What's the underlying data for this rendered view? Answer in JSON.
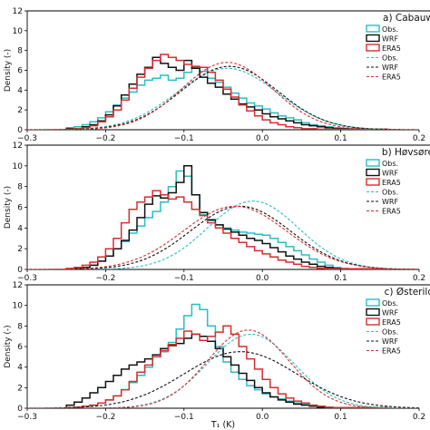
{
  "chart_data": {
    "type": "line",
    "figure": {
      "xlabel": "T₁ (K)",
      "ylabel": "Density (-)"
    },
    "colors": {
      "Obs.": "#2bbdc5",
      "WRF": "#111111",
      "ERA5": "#d62f2f"
    },
    "xlim": [
      -0.3,
      0.2
    ],
    "x_ticks": [
      "-0.3",
      "-0.2",
      "-0.1",
      "0.0",
      "0.1",
      "0.2"
    ],
    "ylim": [
      0,
      12
    ],
    "y_ticks": [
      "0",
      "2",
      "4",
      "6",
      "8",
      "10",
      "12"
    ],
    "bin_width": 0.01,
    "panels": [
      {
        "title": "a) Cabauw",
        "legend": [
          "Obs.",
          "WRF",
          "ERA5",
          "Obs.",
          "WRF",
          "ERA5"
        ],
        "hist_start": -0.25,
        "hist": [
          {
            "name": "Obs.",
            "values": [
              0.2,
              0.3,
              0.5,
              0.8,
              1.2,
              1.8,
              2.5,
              3.2,
              3.8,
              4.5,
              5.0,
              5.2,
              5.5,
              5.0,
              5.2,
              5.8,
              6.3,
              5.9,
              5.2,
              4.8,
              4.3,
              3.7,
              3.2,
              2.7,
              2.4,
              2.1,
              1.7,
              1.4,
              1.2,
              1.0,
              0.7,
              0.5,
              0.4,
              0.3,
              0.2,
              0.1,
              0.1,
              0.1,
              0.05,
              0.05,
              0.05
            ]
          },
          {
            "name": "WRF",
            "values": [
              0.1,
              0.1,
              0.3,
              0.5,
              0.9,
              1.5,
              2.4,
              3.5,
              4.6,
              5.6,
              6.3,
              7.3,
              6.7,
              6.3,
              6.0,
              7.0,
              6.2,
              5.3,
              4.7,
              4.3,
              3.6,
              3.1,
              2.6,
              2.3,
              2.0,
              1.6,
              1.3,
              1.1,
              0.9,
              0.7,
              0.5,
              0.4,
              0.3,
              0.2,
              0.1,
              0.1,
              0.05,
              0.05,
              0.05,
              0.05,
              0.05
            ]
          },
          {
            "name": "ERA5",
            "values": [
              0.05,
              0.1,
              0.2,
              0.4,
              0.8,
              1.3,
              2.0,
              3.0,
              4.2,
              5.3,
              6.2,
              7.0,
              7.6,
              7.3,
              7.0,
              6.6,
              6.4,
              6.3,
              5.8,
              5.0,
              4.1,
              3.3,
              2.5,
              1.9,
              1.4,
              1.0,
              0.7,
              0.5,
              0.3,
              0.2,
              0.1,
              0.1,
              0.05,
              0.05,
              0.05,
              0.05,
              0.05,
              0.05,
              0.05,
              0.05,
              0.05
            ]
          }
        ],
        "fits": [
          {
            "name": "Obs.",
            "mean": -0.045,
            "sd": 0.064,
            "peak": 6.2
          },
          {
            "name": "WRF",
            "mean": -0.042,
            "sd": 0.062,
            "peak": 6.4
          },
          {
            "name": "ERA5",
            "mean": -0.045,
            "sd": 0.058,
            "peak": 6.8
          }
        ]
      },
      {
        "title": "b) Høvsøre",
        "legend": [
          "Obs.",
          "WRF",
          "ERA5",
          "Obs.",
          "WRF",
          "ERA5"
        ],
        "hist_start": -0.25,
        "hist": [
          {
            "name": "Obs.",
            "values": [
              0.05,
              0.1,
              0.2,
              0.4,
              0.8,
              1.3,
              2.0,
              2.7,
              3.5,
              4.2,
              5.0,
              5.6,
              6.5,
              8.0,
              9.5,
              9.0,
              7.2,
              5.3,
              4.7,
              4.3,
              4.0,
              3.8,
              3.6,
              3.5,
              3.4,
              3.3,
              3.0,
              2.6,
              2.2,
              1.8,
              1.4,
              1.0,
              0.7,
              0.4,
              0.2,
              0.1,
              0.05,
              0.05,
              0.05,
              0.05,
              0.05
            ]
          },
          {
            "name": "WRF",
            "values": [
              0.05,
              0.1,
              0.2,
              0.4,
              0.8,
              1.3,
              2.0,
              2.8,
              3.8,
              5.0,
              6.3,
              7.1,
              6.9,
              7.4,
              8.4,
              10.0,
              7.2,
              5.5,
              4.8,
              4.3,
              3.9,
              3.6,
              3.3,
              3.0,
              2.8,
              2.5,
              2.1,
              1.7,
              1.3,
              1.0,
              0.7,
              0.5,
              0.3,
              0.2,
              0.1,
              0.05,
              0.05,
              0.05,
              0.05,
              0.05,
              0.05
            ]
          },
          {
            "name": "ERA5",
            "values": [
              0.1,
              0.2,
              0.4,
              0.7,
              1.2,
              2.0,
              3.0,
              4.5,
              5.8,
              6.5,
              7.0,
              7.6,
              7.2,
              6.8,
              7.0,
              6.5,
              5.8,
              5.2,
              4.5,
              4.0,
              3.5,
              3.0,
              2.6,
              2.2,
              1.8,
              1.5,
              1.2,
              0.9,
              0.7,
              0.5,
              0.3,
              0.2,
              0.1,
              0.05,
              0.05,
              0.05,
              0.05,
              0.05,
              0.05,
              0.05,
              0.05
            ]
          }
        ],
        "fits": [
          {
            "name": "Obs.",
            "mean": -0.012,
            "sd": 0.058,
            "peak": 6.6
          },
          {
            "name": "WRF",
            "mean": -0.028,
            "sd": 0.064,
            "peak": 6.1
          },
          {
            "name": "ERA5",
            "mean": -0.035,
            "sd": 0.066,
            "peak": 6.1
          }
        ]
      },
      {
        "title": "c) Østerild",
        "legend": [
          "Obs.",
          "WRF",
          "ERA5",
          "Obs.",
          "WRF",
          "ERA5"
        ],
        "hist_start": -0.25,
        "hist": [
          {
            "name": "Obs.",
            "values": [
              0.05,
              0.1,
              0.2,
              0.3,
              0.5,
              0.8,
              1.2,
              1.8,
              2.5,
              3.2,
              4.0,
              5.0,
              5.5,
              6.4,
              7.7,
              9.0,
              10.1,
              9.6,
              8.0,
              6.0,
              4.5,
              3.5,
              2.8,
              2.2,
              1.8,
              1.4,
              1.1,
              0.9,
              0.7,
              0.5,
              0.4,
              0.3,
              0.2,
              0.1,
              0.05,
              0.05,
              0.05,
              0.05,
              0.05,
              0.05,
              0.05
            ]
          },
          {
            "name": "WRF",
            "values": [
              0.3,
              0.6,
              1.0,
              1.5,
              2.0,
              2.6,
              3.2,
              3.8,
              4.2,
              4.5,
              4.8,
              5.2,
              5.8,
              6.1,
              6.3,
              6.8,
              7.2,
              7.0,
              6.5,
              5.8,
              5.0,
              4.2,
              3.4,
              2.7,
              2.0,
              1.5,
              1.1,
              0.8,
              0.6,
              0.4,
              0.3,
              0.2,
              0.1,
              0.05,
              0.05,
              0.05,
              0.05,
              0.05,
              0.05,
              0.05,
              0.05
            ]
          },
          {
            "name": "ERA5",
            "values": [
              0.05,
              0.1,
              0.2,
              0.3,
              0.5,
              0.8,
              1.2,
              1.8,
              2.6,
              3.5,
              4.2,
              5.0,
              5.6,
              6.2,
              6.8,
              7.5,
              7.2,
              6.6,
              7.0,
              7.4,
              8.0,
              7.2,
              6.0,
              4.8,
              3.8,
              2.8,
              2.0,
              1.4,
              1.0,
              0.7,
              0.5,
              0.3,
              0.2,
              0.1,
              0.05,
              0.05,
              0.05,
              0.05,
              0.05,
              0.05,
              0.05
            ]
          }
        ],
        "fits": [
          {
            "name": "Obs.",
            "mean": -0.015,
            "sd": 0.055,
            "peak": 7.2
          },
          {
            "name": "WRF",
            "mean": -0.028,
            "sd": 0.072,
            "peak": 5.5
          },
          {
            "name": "ERA5",
            "mean": -0.018,
            "sd": 0.052,
            "peak": 7.6
          }
        ]
      }
    ]
  }
}
